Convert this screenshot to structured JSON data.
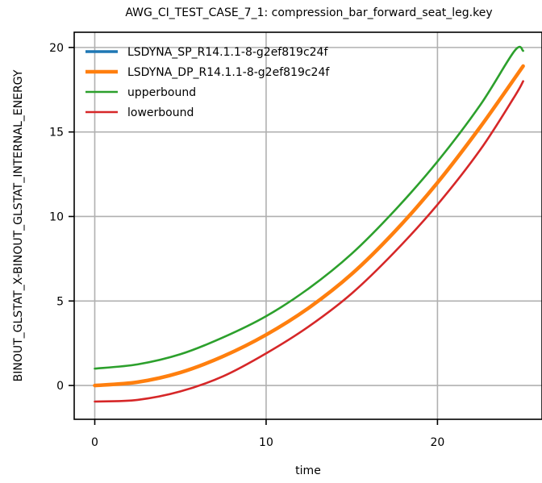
{
  "chart_data": {
    "type": "line",
    "title": "AWG_CI_TEST_CASE_7_1: compression_bar_forward_seat_leg.key",
    "xlabel": "time",
    "ylabel": "BINOUT_GLSTAT_X-BINOUT_GLSTAT_INTERNAL_ENERGY",
    "xlim": [
      -1.2,
      26.1
    ],
    "ylim": [
      -2.0,
      20.9
    ],
    "xticks": [
      0,
      10,
      20
    ],
    "yticks": [
      0,
      5,
      10,
      15,
      20
    ],
    "grid": true,
    "legend_position": "top-left",
    "series": [
      {
        "name": "LSDYNA_SP_R14.1.1-8-g2ef819c24f",
        "color": "#1f77b4",
        "x": [
          0,
          2.5,
          5,
          7.5,
          10,
          12.5,
          15,
          17.5,
          20,
          22.5,
          25
        ],
        "y": [
          0,
          0.2,
          0.77,
          1.73,
          3.0,
          4.6,
          6.6,
          9.1,
          12.0,
          15.3,
          18.9
        ]
      },
      {
        "name": "LSDYNA_DP_R14.1.1-8-g2ef819c24f",
        "color": "#ff7f0e",
        "x": [
          0,
          2.5,
          5,
          7.5,
          10,
          12.5,
          15,
          17.5,
          20,
          22.5,
          25
        ],
        "y": [
          0,
          0.2,
          0.77,
          1.73,
          3.0,
          4.6,
          6.6,
          9.1,
          12.0,
          15.3,
          18.9
        ]
      },
      {
        "name": "upperbound",
        "color": "#2ca02c",
        "x": [
          0,
          2.5,
          5,
          7.5,
          10,
          12.5,
          15,
          17.5,
          20,
          22.5,
          24.5,
          25
        ],
        "y": [
          1.0,
          1.25,
          1.85,
          2.85,
          4.1,
          5.75,
          7.8,
          10.35,
          13.25,
          16.6,
          19.8,
          19.8
        ]
      },
      {
        "name": "lowerbound",
        "color": "#d62728",
        "x": [
          0,
          2.5,
          5,
          7.5,
          10,
          12.5,
          15,
          17.5,
          20,
          22.5,
          24.5,
          25
        ],
        "y": [
          -0.95,
          -0.85,
          -0.35,
          0.55,
          1.9,
          3.5,
          5.45,
          7.9,
          10.7,
          13.95,
          17.1,
          18.0
        ]
      }
    ]
  }
}
